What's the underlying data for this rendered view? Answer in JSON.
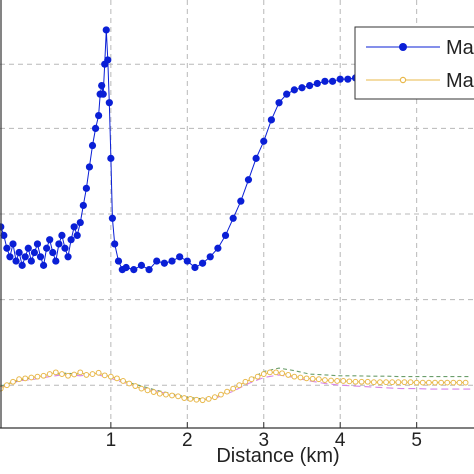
{
  "chart_data": {
    "type": "line",
    "xlabel": "Distance (km)",
    "ylabel": "",
    "title": "",
    "xlim": [
      -0.45,
      5.75
    ],
    "ylim": [
      0.0,
      1.0
    ],
    "xticks": [
      1,
      2,
      3,
      4,
      5
    ],
    "xtick_labels": [
      "1",
      "2",
      "3",
      "4",
      "5"
    ],
    "grid": true,
    "legend": {
      "placement": "top-right",
      "entries": [
        "Ma",
        "Ma"
      ]
    },
    "series": [
      {
        "name": "Ma",
        "color": "#0a1fd6",
        "marker": "filled-circle",
        "x": [
          -0.44,
          -0.4,
          -0.36,
          -0.32,
          -0.28,
          -0.24,
          -0.2,
          -0.16,
          -0.12,
          -0.08,
          -0.04,
          0.0,
          0.04,
          0.08,
          0.12,
          0.16,
          0.2,
          0.24,
          0.28,
          0.32,
          0.36,
          0.4,
          0.44,
          0.48,
          0.52,
          0.56,
          0.6,
          0.64,
          0.68,
          0.72,
          0.76,
          0.8,
          0.84,
          0.86,
          0.88,
          0.9,
          0.92,
          0.94,
          0.96,
          0.98,
          1.0,
          1.02,
          1.05,
          1.1,
          1.15,
          1.2,
          1.3,
          1.4,
          1.5,
          1.6,
          1.7,
          1.8,
          1.9,
          2.0,
          2.1,
          2.2,
          2.3,
          2.4,
          2.5,
          2.6,
          2.7,
          2.8,
          2.9,
          3.0,
          3.1,
          3.2,
          3.3,
          3.4,
          3.5,
          3.6,
          3.7,
          3.8,
          3.9,
          4.0,
          4.1,
          4.2,
          4.3,
          4.4,
          4.5,
          4.7,
          4.9,
          5.1,
          5.3,
          5.5
        ],
        "values": [
          0.47,
          0.45,
          0.42,
          0.4,
          0.43,
          0.39,
          0.41,
          0.38,
          0.4,
          0.42,
          0.39,
          0.41,
          0.43,
          0.4,
          0.38,
          0.42,
          0.44,
          0.41,
          0.39,
          0.43,
          0.45,
          0.42,
          0.4,
          0.44,
          0.47,
          0.45,
          0.48,
          0.52,
          0.56,
          0.61,
          0.66,
          0.7,
          0.73,
          0.78,
          0.8,
          0.78,
          0.85,
          0.93,
          0.86,
          0.76,
          0.63,
          0.49,
          0.43,
          0.39,
          0.37,
          0.375,
          0.37,
          0.38,
          0.37,
          0.39,
          0.385,
          0.39,
          0.4,
          0.39,
          0.375,
          0.385,
          0.4,
          0.42,
          0.45,
          0.49,
          0.53,
          0.58,
          0.63,
          0.67,
          0.72,
          0.76,
          0.78,
          0.79,
          0.795,
          0.8,
          0.805,
          0.81,
          0.81,
          0.815,
          0.815,
          0.818,
          0.815,
          0.812,
          0.81,
          0.81,
          0.81,
          0.81,
          0.81,
          0.81
        ]
      },
      {
        "name": "Ma",
        "color": "#e8b84a",
        "marker": "open-circle",
        "x": [
          -0.44,
          -0.36,
          -0.28,
          -0.2,
          -0.12,
          -0.04,
          0.04,
          0.12,
          0.2,
          0.28,
          0.36,
          0.44,
          0.52,
          0.6,
          0.68,
          0.76,
          0.84,
          0.92,
          1.0,
          1.08,
          1.16,
          1.24,
          1.32,
          1.4,
          1.48,
          1.56,
          1.64,
          1.72,
          1.8,
          1.88,
          1.96,
          2.04,
          2.12,
          2.2,
          2.28,
          2.36,
          2.44,
          2.52,
          2.6,
          2.68,
          2.76,
          2.84,
          2.92,
          3.0,
          3.08,
          3.16,
          3.24,
          3.32,
          3.4,
          3.48,
          3.56,
          3.64,
          3.72,
          3.8,
          3.88,
          3.96,
          4.04,
          4.12,
          4.2,
          4.28,
          4.36,
          4.44,
          4.52,
          4.6,
          4.68,
          4.76,
          4.84,
          4.92,
          5.0,
          5.08,
          5.16,
          5.24,
          5.32,
          5.4,
          5.48,
          5.56,
          5.64
        ],
        "values": [
          0.092,
          0.1,
          0.108,
          0.114,
          0.116,
          0.118,
          0.12,
          0.122,
          0.126,
          0.13,
          0.126,
          0.122,
          0.125,
          0.13,
          0.124,
          0.126,
          0.129,
          0.123,
          0.12,
          0.116,
          0.11,
          0.104,
          0.098,
          0.092,
          0.088,
          0.084,
          0.08,
          0.078,
          0.076,
          0.074,
          0.07,
          0.068,
          0.066,
          0.065,
          0.068,
          0.072,
          0.078,
          0.085,
          0.092,
          0.1,
          0.108,
          0.114,
          0.12,
          0.126,
          0.13,
          0.13,
          0.128,
          0.124,
          0.12,
          0.118,
          0.116,
          0.115,
          0.114,
          0.112,
          0.111,
          0.11,
          0.11,
          0.109,
          0.108,
          0.108,
          0.108,
          0.107,
          0.107,
          0.107,
          0.107,
          0.107,
          0.107,
          0.107,
          0.106,
          0.106,
          0.106,
          0.106,
          0.106,
          0.106,
          0.106,
          0.106,
          0.106
        ]
      },
      {
        "color": "#d684e8",
        "marker": "none",
        "x": [
          -0.44,
          -0.2,
          0.0,
          0.2,
          0.4,
          0.6,
          0.8,
          1.0,
          1.2,
          1.4,
          1.6,
          1.8,
          2.0,
          2.2,
          2.4,
          2.6,
          2.8,
          3.0,
          3.2,
          3.4,
          3.6,
          3.8,
          4.0,
          4.2,
          4.4,
          4.6,
          4.8,
          5.0,
          5.2,
          5.4,
          5.7
        ],
        "values": [
          0.095,
          0.11,
          0.114,
          0.12,
          0.125,
          0.122,
          0.126,
          0.116,
          0.104,
          0.094,
          0.086,
          0.078,
          0.07,
          0.066,
          0.072,
          0.086,
          0.104,
          0.118,
          0.124,
          0.118,
          0.11,
          0.104,
          0.1,
          0.098,
          0.096,
          0.094,
          0.092,
          0.092,
          0.091,
          0.091,
          0.091
        ]
      },
      {
        "color": "#6b9e6b",
        "marker": "none",
        "x": [
          -0.44,
          -0.2,
          0.0,
          0.2,
          0.4,
          0.6,
          0.8,
          1.0,
          1.2,
          1.4,
          1.6,
          1.8,
          2.0,
          2.2,
          2.4,
          2.6,
          2.8,
          3.0,
          3.2,
          3.4,
          3.6,
          3.8,
          4.0,
          4.2,
          4.4,
          4.6,
          4.8,
          5.0,
          5.2,
          5.4,
          5.7
        ],
        "values": [
          0.098,
          0.112,
          0.118,
          0.124,
          0.128,
          0.126,
          0.13,
          0.12,
          0.108,
          0.098,
          0.088,
          0.08,
          0.072,
          0.068,
          0.076,
          0.092,
          0.112,
          0.132,
          0.14,
          0.134,
          0.126,
          0.124,
          0.122,
          0.122,
          0.121,
          0.121,
          0.12,
          0.12,
          0.12,
          0.12,
          0.12
        ]
      }
    ]
  }
}
